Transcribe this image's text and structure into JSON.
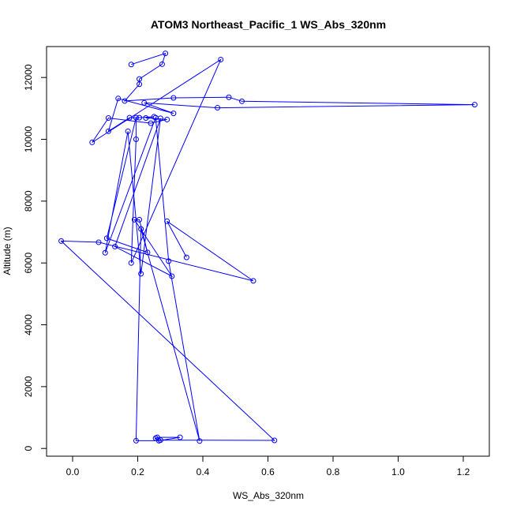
{
  "chart_data": {
    "type": "scatter",
    "title": "ATOM3 Northeast_Pacific_1 WS_Abs_320nm",
    "xlabel": "WS_Abs_320nm",
    "ylabel": "Altitude (m)",
    "xlim": [
      -0.08,
      1.28
    ],
    "ylim": [
      -250,
      13000
    ],
    "xticks": [
      0.0,
      0.2,
      0.4,
      0.6,
      0.8,
      1.0,
      1.2
    ],
    "xtick_labels": [
      "0.0",
      "0.2",
      "0.4",
      "0.6",
      "0.8",
      "1.0",
      "1.2"
    ],
    "yticks": [
      0,
      2000,
      4000,
      6000,
      8000,
      10000,
      12000
    ],
    "ytick_labels": [
      "0",
      "2000",
      "4000",
      "6000",
      "8000",
      "10000",
      "12000"
    ],
    "grid": false,
    "legend": "none",
    "color": "#0000ff",
    "series": [
      {
        "x": [
          0.18,
          0.285,
          0.275,
          0.205,
          0.205,
          0.16,
          0.31,
          0.48,
          0.52,
          1.235,
          0.445,
          0.22,
          0.31,
          0.14,
          0.11,
          0.175,
          0.205,
          0.25,
          0.225,
          0.29,
          0.24,
          0.11,
          0.06,
          0.455,
          0.18,
          0.195,
          0.195,
          0.105,
          0.23,
          0.205,
          0.19,
          0.305,
          0.13,
          0.27,
          0.21,
          0.17,
          0.1,
          0.255,
          0.295,
          0.39,
          0.21,
          0.195,
          0.265,
          0.33,
          0.26,
          0.255,
          0.27,
          0.62,
          -0.035,
          0.08,
          0.555,
          0.29,
          0.35
        ],
        "y": [
          12420,
          12780,
          12430,
          11950,
          11780,
          11240,
          11340,
          11360,
          11230,
          11120,
          11020,
          11180,
          10840,
          11320,
          10260,
          10700,
          10700,
          10730,
          10690,
          10640,
          10520,
          10690,
          9900,
          12580,
          6000,
          10000,
          10700,
          6800,
          6340,
          7400,
          7400,
          5570,
          6530,
          10680,
          5650,
          10260,
          6330,
          10700,
          6060,
          240,
          7100,
          250,
          250,
          360,
          360,
          330,
          270,
          260,
          6710,
          6670,
          5420,
          7350,
          6180
        ]
      }
    ]
  }
}
